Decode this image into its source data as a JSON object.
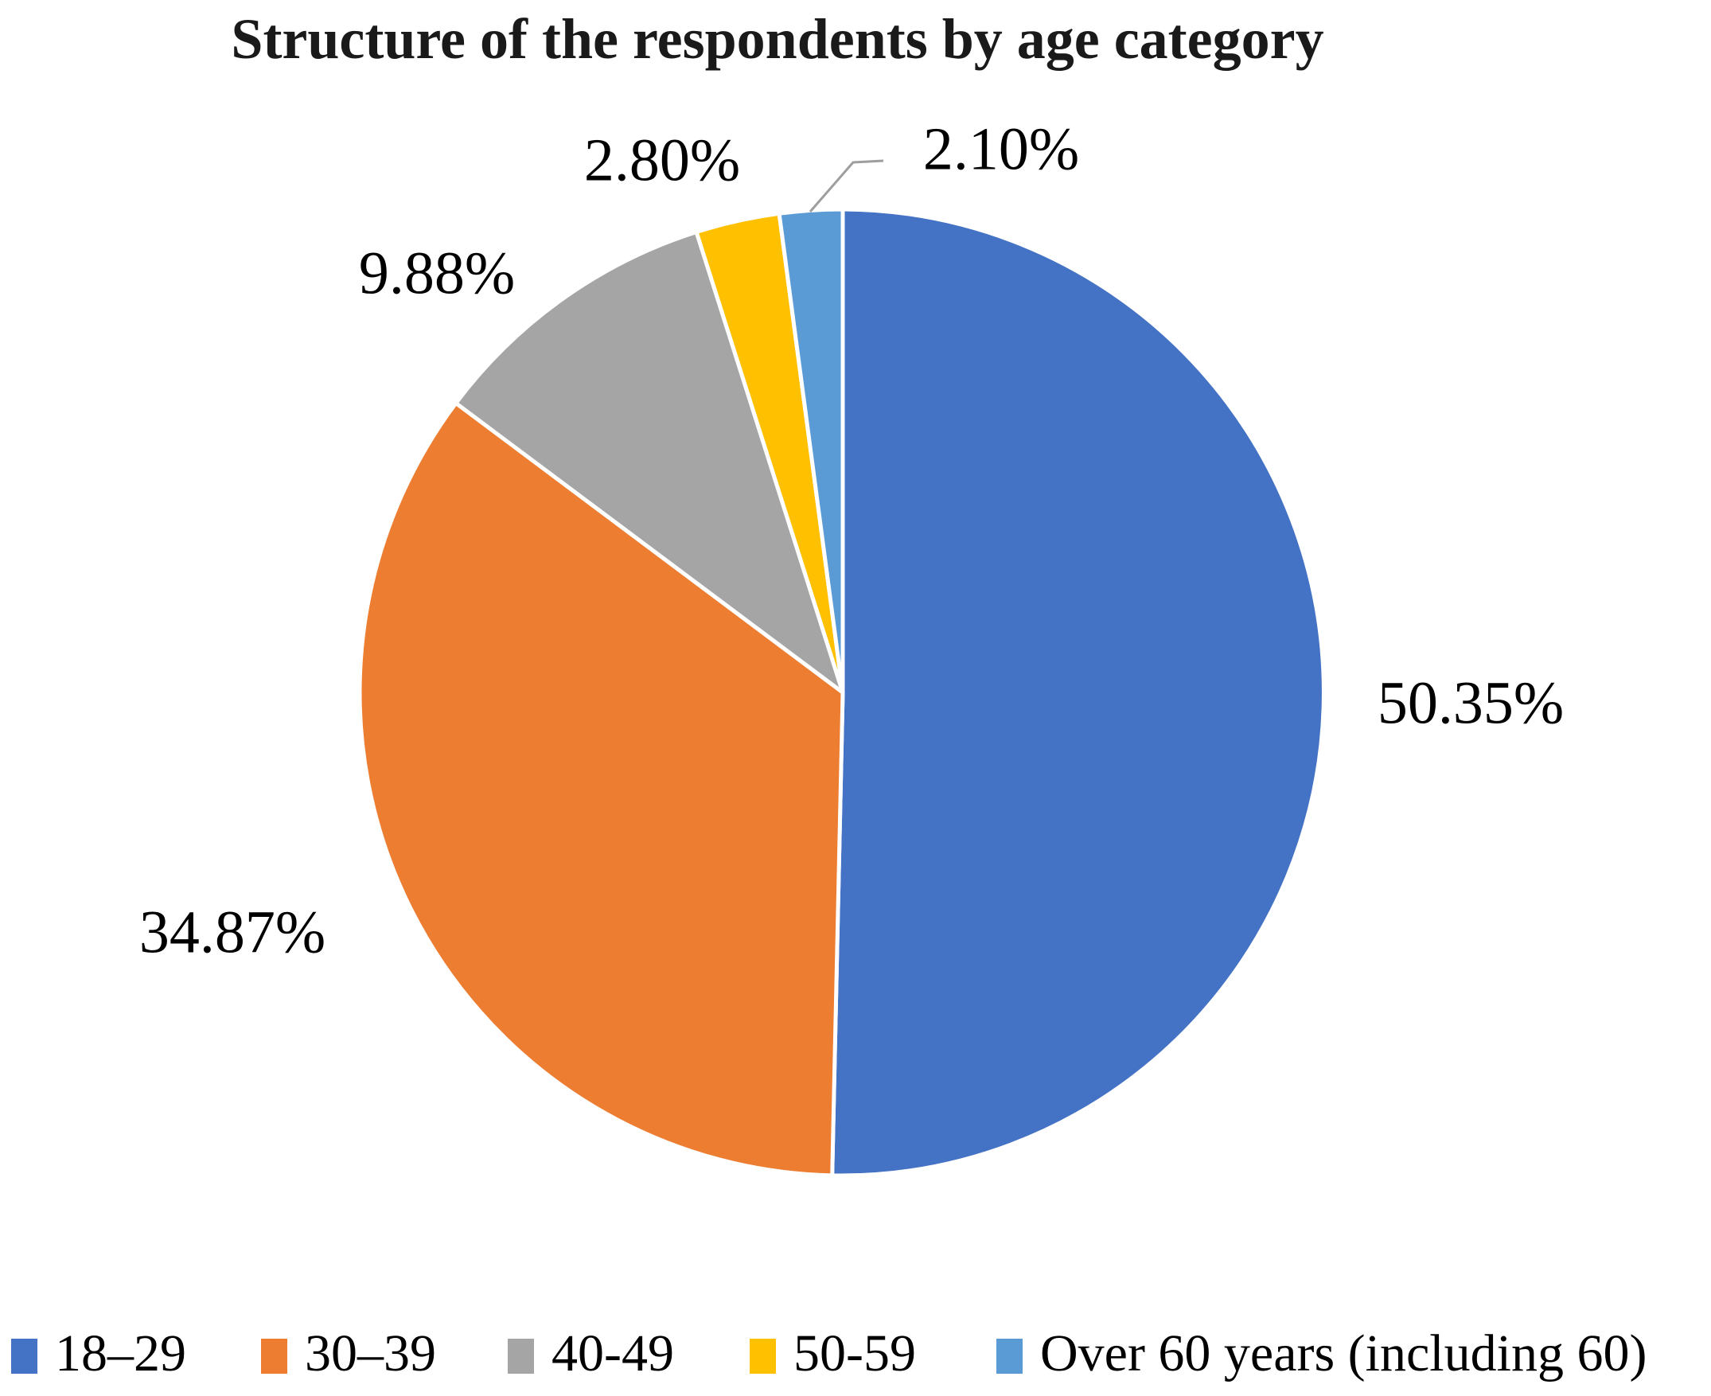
{
  "title": "Structure of the respondents by age category",
  "chart_data": {
    "type": "pie",
    "title": "Structure of the respondents by age category",
    "categories": [
      "18–29",
      "30–39",
      "40-49",
      "50-59",
      "Over 60 years (including 60)"
    ],
    "values": [
      50.35,
      34.87,
      9.88,
      2.8,
      2.1
    ],
    "labels": [
      "50.35%",
      "34.87%",
      "9.88%",
      "2.80%",
      "2.10%"
    ],
    "colors": [
      "#4472C4",
      "#ED7D31",
      "#A5A5A5",
      "#FFC000",
      "#5B9BD5"
    ],
    "start_angle_deg": 0,
    "direction": "clockwise",
    "slice_border_color": "#FFFFFF",
    "leader_line_color": "#9E9E9E",
    "legend_position": "bottom"
  }
}
